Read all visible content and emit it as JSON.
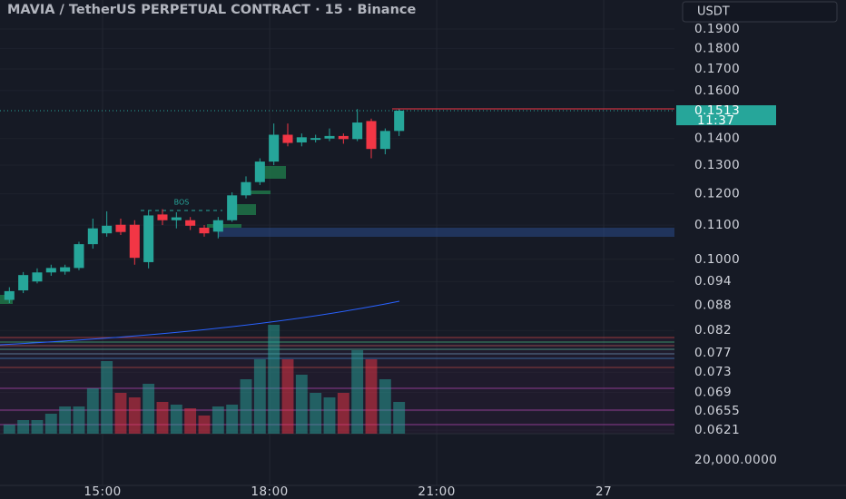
{
  "chart_data": {
    "type": "candlestick",
    "title": "MAVIA / TetherUS PERPETUAL CONTRACT · 15 · Binance",
    "currency": "USDT",
    "annotation": "BOS",
    "last_price": 0.1513,
    "countdown": "11:37",
    "volume_scale_label": "20,000.0000",
    "log_scale": true,
    "grid": true,
    "up_color": "#26a69a",
    "down_color": "#f23645",
    "x": [
      13.2,
      13.45,
      13.7,
      13.95,
      14.2,
      14.45,
      14.7,
      14.95,
      15.2,
      15.45,
      15.7,
      15.95,
      16.2,
      16.45,
      16.7,
      16.95,
      17.2,
      17.45,
      17.7,
      17.95,
      18.2,
      18.45,
      18.7,
      18.95,
      19.2,
      19.45,
      19.7,
      19.95,
      20.2
    ],
    "open": [
      0.0893,
      0.0917,
      0.094,
      0.0964,
      0.0966,
      0.0976,
      0.1043,
      0.1075,
      0.1101,
      0.1101,
      0.0992,
      0.1133,
      0.1115,
      0.1115,
      0.1092,
      0.108,
      0.1115,
      0.1195,
      0.124,
      0.1313,
      0.1415,
      0.1385,
      0.1395,
      0.14,
      0.141,
      0.1398,
      0.147,
      0.136,
      0.143
    ],
    "high": [
      0.0925,
      0.0965,
      0.0975,
      0.0985,
      0.0985,
      0.105,
      0.112,
      0.1143,
      0.112,
      0.1115,
      0.1145,
      0.115,
      0.114,
      0.1125,
      0.11,
      0.1125,
      0.1205,
      0.126,
      0.1325,
      0.146,
      0.146,
      0.142,
      0.1415,
      0.144,
      0.142,
      0.152,
      0.148,
      0.144,
      0.152
    ],
    "low": [
      0.0885,
      0.091,
      0.0935,
      0.0955,
      0.0958,
      0.097,
      0.103,
      0.1065,
      0.107,
      0.0985,
      0.0975,
      0.11,
      0.109,
      0.1085,
      0.1065,
      0.106,
      0.111,
      0.1185,
      0.123,
      0.13,
      0.137,
      0.137,
      0.1385,
      0.139,
      0.138,
      0.139,
      0.1325,
      0.134,
      0.141
    ],
    "close": [
      0.0915,
      0.0957,
      0.0964,
      0.0976,
      0.0978,
      0.1043,
      0.109,
      0.1098,
      0.1079,
      0.1004,
      0.113,
      0.1115,
      0.1124,
      0.1098,
      0.1075,
      0.1115,
      0.1195,
      0.124,
      0.1313,
      0.1415,
      0.1383,
      0.1405,
      0.1402,
      0.141,
      0.1398,
      0.1464,
      0.136,
      0.143,
      0.1513
    ],
    "volume": [
      10,
      15,
      15,
      22,
      30,
      30,
      50,
      80,
      45,
      40,
      55,
      35,
      32,
      28,
      20,
      30,
      32,
      60,
      82,
      120,
      82,
      65,
      45,
      40,
      45,
      92,
      82,
      60,
      35
    ],
    "ylim": [
      0.0615,
      0.206
    ],
    "yticks": [
      {
        "value": 0.19,
        "label": "0.1900"
      },
      {
        "value": 0.18,
        "label": "0.1800"
      },
      {
        "value": 0.17,
        "label": "0.1700"
      },
      {
        "value": 0.16,
        "label": "0.1600"
      },
      {
        "value": 0.14,
        "label": "0.1400"
      },
      {
        "value": 0.13,
        "label": "0.1300"
      },
      {
        "value": 0.12,
        "label": "0.1200"
      },
      {
        "value": 0.11,
        "label": "0.1100"
      },
      {
        "value": 0.1,
        "label": "0.1000"
      },
      0.094,
      0.088,
      0.082,
      0.077,
      0.073,
      0.069,
      0.0655,
      0.0621
    ],
    "xlim": [
      13.157,
      25.27
    ],
    "xticks": [
      {
        "value": 15,
        "label": "15:00"
      },
      {
        "value": 18,
        "label": "18:00"
      },
      {
        "value": 21,
        "label": "21:00"
      },
      {
        "value": 24,
        "label": "27"
      }
    ]
  }
}
